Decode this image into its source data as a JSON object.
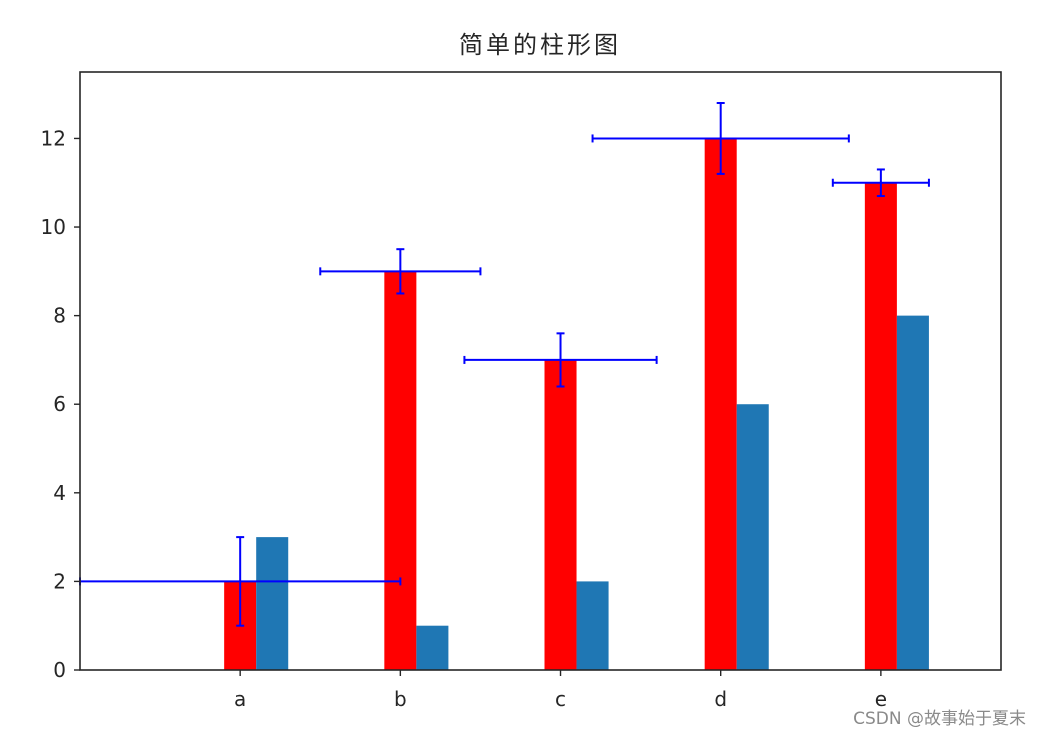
{
  "chart_data": {
    "type": "bar",
    "title": "简单的柱形图",
    "xlabel": "",
    "ylabel": "",
    "categories": [
      "a",
      "b",
      "c",
      "d",
      "e"
    ],
    "ylim": [
      0,
      13.5
    ],
    "xlim": [
      -1.0,
      4.75
    ],
    "yticks": [
      0,
      2,
      4,
      6,
      8,
      10,
      12
    ],
    "grid": false,
    "series": [
      {
        "values": [
          2,
          9,
          7,
          12,
          11
        ],
        "color": "#ff0000",
        "yerr": [
          1,
          0.5,
          0.6,
          0.8,
          0.3
        ],
        "xerr": [
          1,
          0.5,
          0.6,
          0.8,
          0.3
        ],
        "err_color": "#0000ff",
        "err_anchor_offset": -1
      },
      {
        "values": [
          3,
          1,
          2,
          6,
          8
        ],
        "color": "#1f77b4"
      }
    ]
  },
  "watermark": "CSDN @故事始于夏末"
}
